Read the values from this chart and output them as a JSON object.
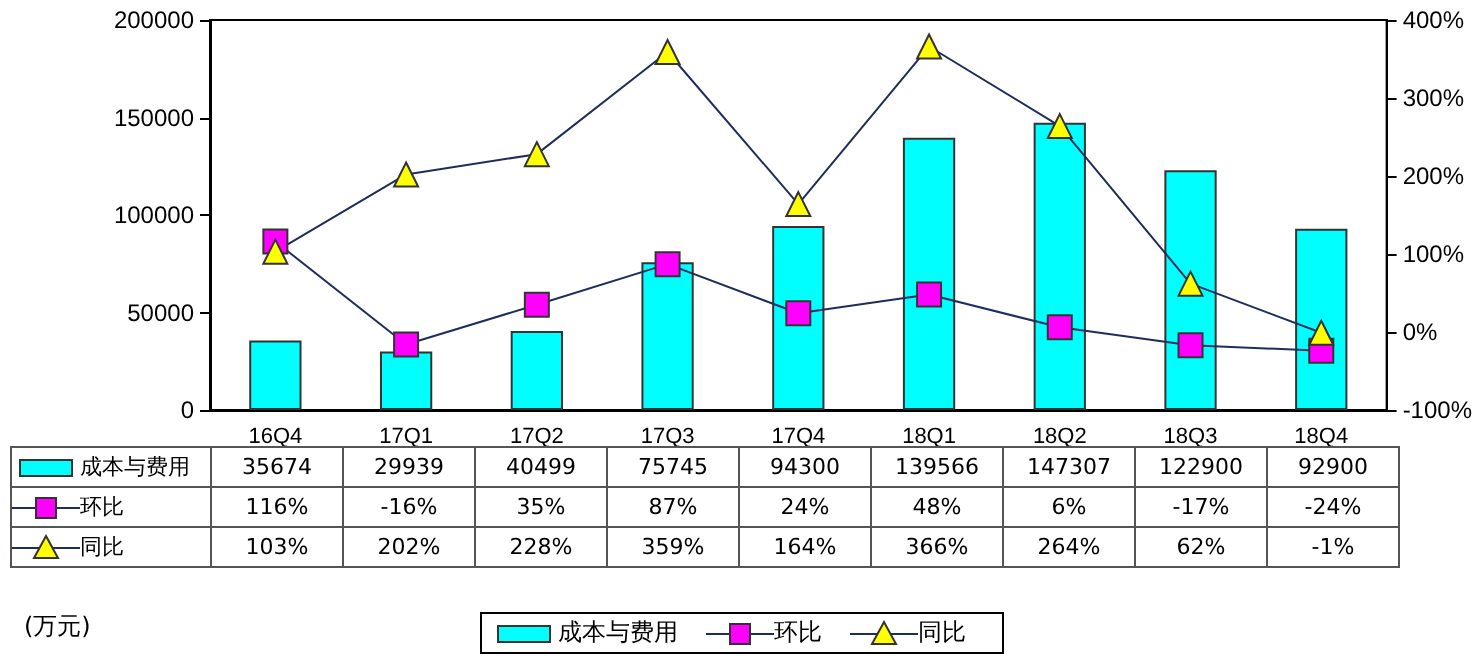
{
  "chart_data": {
    "type": "bar",
    "categories": [
      "16Q4",
      "17Q1",
      "17Q2",
      "17Q3",
      "17Q4",
      "18Q1",
      "18Q2",
      "18Q3",
      "18Q4"
    ],
    "series": [
      {
        "name": "成本与费用",
        "color": "#00ffff",
        "values": [
          35674,
          29939,
          40499,
          75745,
          94300,
          139566,
          147307,
          122900,
          92900
        ],
        "value_labels": [
          "35674",
          "29939",
          "40499",
          "75745",
          "94300",
          "139566",
          "147307",
          "122900",
          "92900"
        ]
      },
      {
        "name": "环比",
        "type": "line",
        "axis": "y2",
        "color": "#ff00ff",
        "marker": "square",
        "values": [
          116,
          -16,
          35,
          87,
          24,
          48,
          6,
          -17,
          -24
        ],
        "value_labels": [
          "116%",
          "-16%",
          "35%",
          "87%",
          "24%",
          "48%",
          "6%",
          "-17%",
          "-24%"
        ]
      },
      {
        "name": "同比",
        "type": "line",
        "axis": "y2",
        "color": "#ffff00",
        "marker": "triangle",
        "values": [
          103,
          202,
          228,
          359,
          164,
          366,
          264,
          62,
          -1
        ],
        "value_labels": [
          "103%",
          "202%",
          "228%",
          "359%",
          "164%",
          "366%",
          "264%",
          "62%",
          "-1%"
        ]
      }
    ],
    "ylim": [
      0,
      200000
    ],
    "yticks": [
      0,
      50000,
      100000,
      150000,
      200000
    ],
    "y2lim": [
      -100,
      400
    ],
    "y2ticks": [
      {
        "value": -100,
        "label": "-100%"
      },
      {
        "value": 0,
        "label": "0%"
      },
      {
        "value": 100,
        "label": "100%"
      },
      {
        "value": 200,
        "label": "200%"
      },
      {
        "value": 300,
        "label": "300%"
      },
      {
        "value": 400,
        "label": "400%"
      }
    ],
    "annotations": [
      "(万元)"
    ],
    "legend": "bottom",
    "grid": false
  }
}
